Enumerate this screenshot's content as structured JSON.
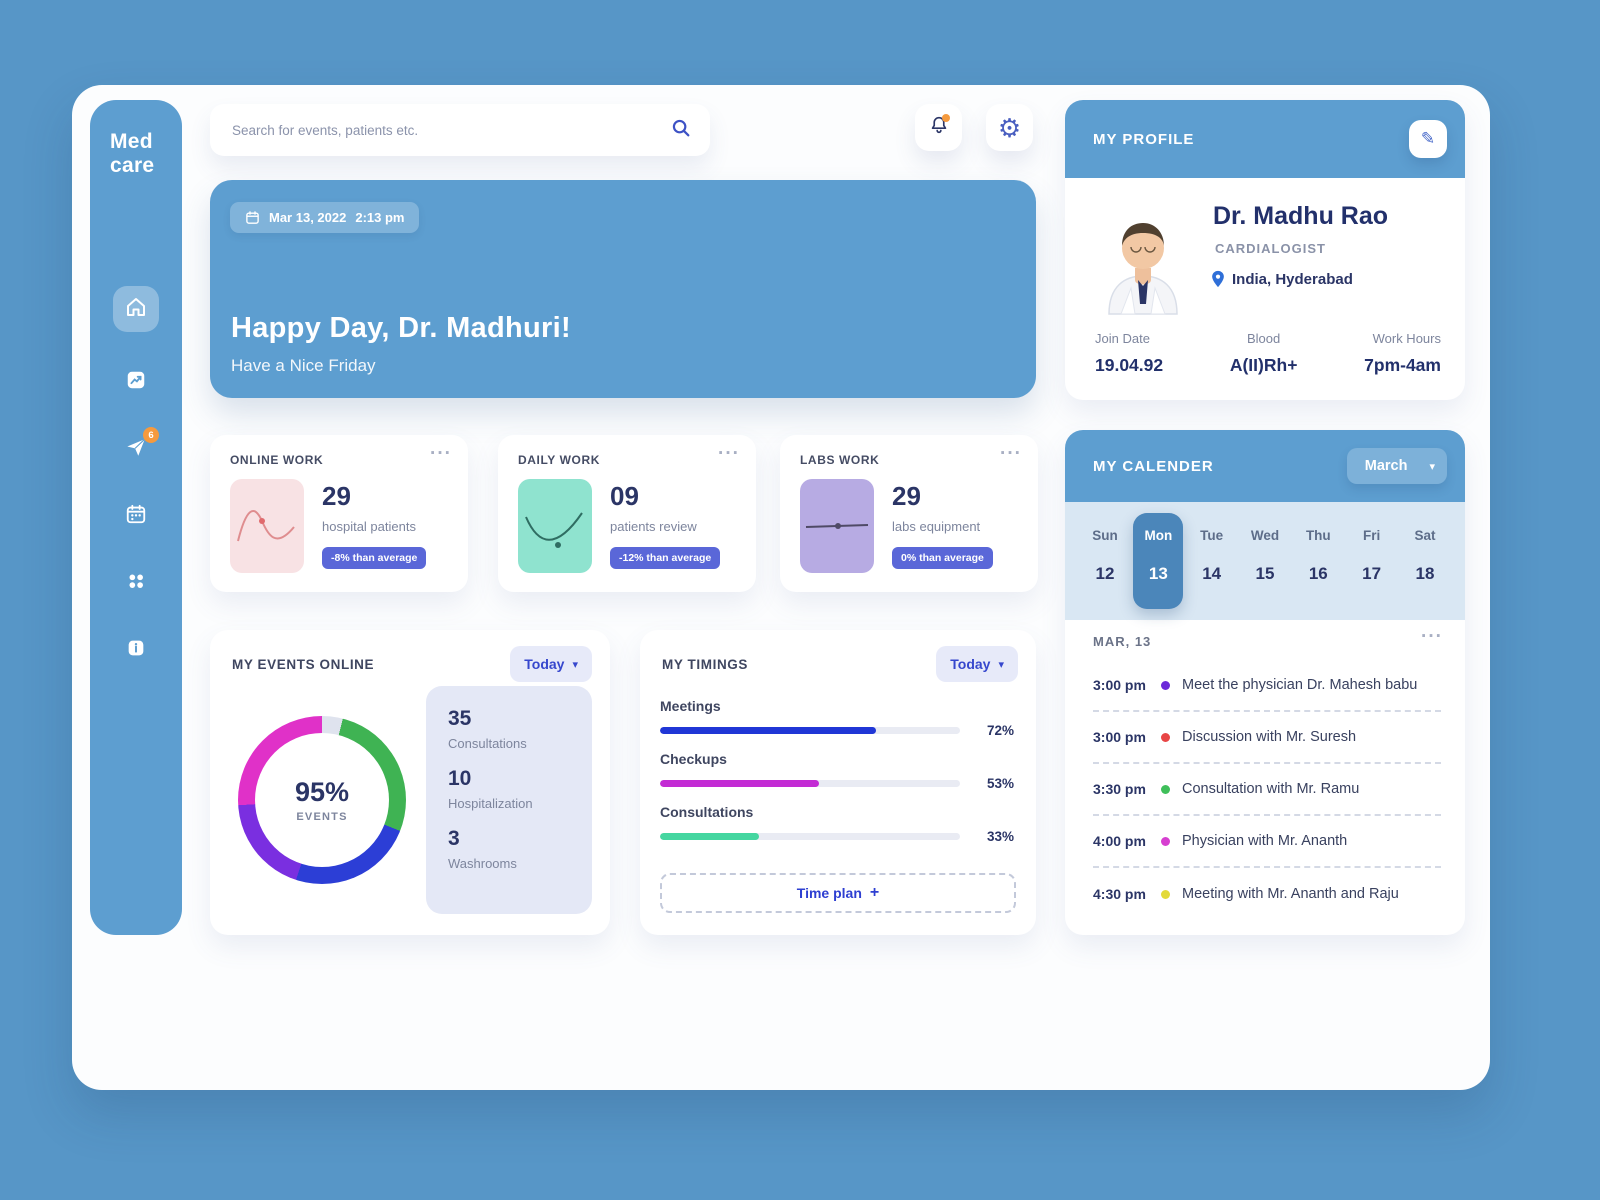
{
  "app": {
    "logo_line1": "Med",
    "logo_line2": "care",
    "plane_badge": "6"
  },
  "icons": {
    "chevron_down": "▾",
    "gear": "⚙",
    "pencil": "✎",
    "plus": "+",
    "menu_dots": "···"
  },
  "topbar": {
    "search_placeholder": "Search for events, patients etc."
  },
  "hero": {
    "date": "Mar 13, 2022",
    "time": "2:13 pm",
    "title": "Happy Day, Dr. Madhuri!",
    "subtitle": "Have a Nice Friday"
  },
  "stats": [
    {
      "title": "ONLINE WORK",
      "value": "29",
      "label": "hospital patients",
      "badge": "-8% than average",
      "thumb_color": "#f8e2e4"
    },
    {
      "title": "DAILY WORK",
      "value": "09",
      "label": "patients review",
      "badge": "-12% than average",
      "thumb_color": "#8fe3cf"
    },
    {
      "title": "LABS WORK",
      "value": "29",
      "label": "labs equipment",
      "badge": "0% than average",
      "thumb_color": "#b7abe3"
    }
  ],
  "events": {
    "title": "MY EVENTS ONLINE",
    "filter": "Today",
    "donut": {
      "percent": "95%",
      "label": "EVENTS",
      "segments": [
        {
          "color": "#dfe3ee",
          "to": 4
        },
        {
          "color": "#3fb353",
          "to": 31
        },
        {
          "color": "#2c3ed6",
          "to": 55
        },
        {
          "color": "#7a2fe0",
          "to": 74
        },
        {
          "color": "#e031c8",
          "to": 100
        }
      ]
    },
    "items": [
      {
        "value": "35",
        "label": "Consultations"
      },
      {
        "value": "10",
        "label": "Hospitalization"
      },
      {
        "value": "3",
        "label": "Washrooms"
      }
    ]
  },
  "timings": {
    "title": "MY TIMINGS",
    "filter": "Today",
    "bars": [
      {
        "label": "Meetings",
        "percent": 72,
        "display": "72%",
        "color": "#2036d6"
      },
      {
        "label": "Checkups",
        "percent": 53,
        "display": "53%",
        "color": "#c32bd4"
      },
      {
        "label": "Consultations",
        "percent": 33,
        "display": "33%",
        "color": "#45d6a0"
      }
    ],
    "time_plan": "Time plan"
  },
  "profile": {
    "title": "MY PROFILE",
    "name": "Dr. Madhu Rao",
    "role": "CARDIALOGIST",
    "location": "India, Hyderabad",
    "fields": [
      {
        "label": "Join Date",
        "value": "19.04.92"
      },
      {
        "label": "Blood",
        "value": "A(II)Rh+"
      },
      {
        "label": "Work Hours",
        "value": "7pm-4am"
      }
    ]
  },
  "calendar": {
    "title": "MY CALENDER",
    "month": "March",
    "days": [
      {
        "name": "Sun",
        "date": "12"
      },
      {
        "name": "Mon",
        "date": "13"
      },
      {
        "name": "Tue",
        "date": "14"
      },
      {
        "name": "Wed",
        "date": "15"
      },
      {
        "name": "Thu",
        "date": "16"
      },
      {
        "name": "Fri",
        "date": "17"
      },
      {
        "name": "Sat",
        "date": "18"
      }
    ],
    "section_label": "MAR, 13",
    "schedule": [
      {
        "time": "3:00 pm",
        "color": "#6c2bd9",
        "text": "Meet the physician Dr. Mahesh babu"
      },
      {
        "time": "3:00 pm",
        "color": "#e84545",
        "text": "Discussion with Mr. Suresh"
      },
      {
        "time": "3:30 pm",
        "color": "#3fbf5a",
        "text": "Consultation with Mr. Ramu"
      },
      {
        "time": "4:00 pm",
        "color": "#d63fd0",
        "text": "Physician with Mr. Ananth"
      },
      {
        "time": "4:30 pm",
        "color": "#e3da3b",
        "text": "Meeting with Mr. Ananth and Raju"
      }
    ]
  }
}
